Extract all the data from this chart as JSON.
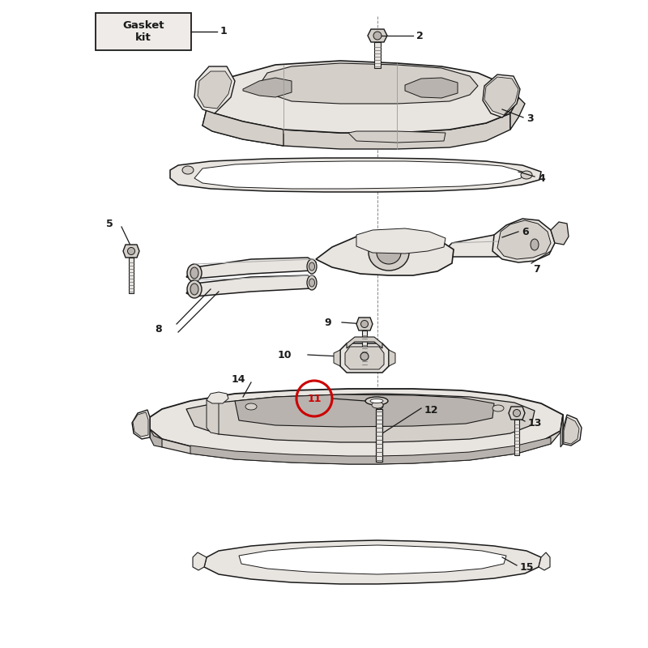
{
  "bg_color": "#ffffff",
  "fill_light": "#e8e4e0",
  "fill_mid": "#d4cfc9",
  "fill_dark": "#b8b3ae",
  "line_color": "#1a1a1a",
  "red_circle_color": "#cc0000",
  "font_size_num": 9,
  "font_size_gasket": 8.5,
  "gasket_label": "Gasket\nkit"
}
